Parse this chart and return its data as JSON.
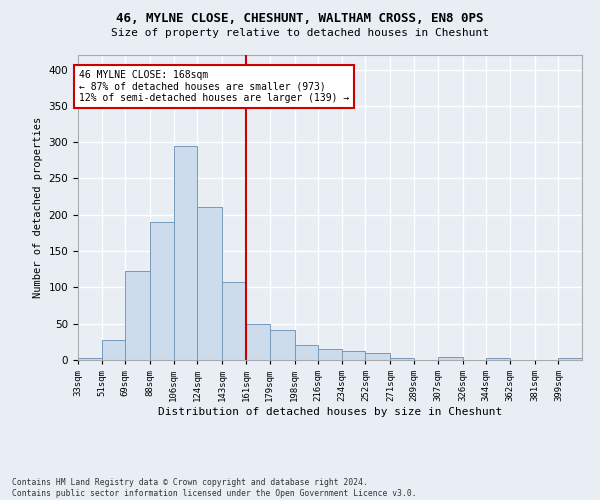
{
  "title1": "46, MYLNE CLOSE, CHESHUNT, WALTHAM CROSS, EN8 0PS",
  "title2": "Size of property relative to detached houses in Cheshunt",
  "xlabel": "Distribution of detached houses by size in Cheshunt",
  "ylabel": "Number of detached properties",
  "footnote": "Contains HM Land Registry data © Crown copyright and database right 2024.\nContains public sector information licensed under the Open Government Licence v3.0.",
  "bin_labels": [
    "33sqm",
    "51sqm",
    "69sqm",
    "88sqm",
    "106sqm",
    "124sqm",
    "143sqm",
    "161sqm",
    "179sqm",
    "198sqm",
    "216sqm",
    "234sqm",
    "252sqm",
    "271sqm",
    "289sqm",
    "307sqm",
    "326sqm",
    "344sqm",
    "362sqm",
    "381sqm",
    "399sqm"
  ],
  "heights": [
    3,
    28,
    122,
    190,
    295,
    210,
    108,
    50,
    42,
    20,
    15,
    12,
    10,
    3,
    0,
    4,
    0,
    3,
    0,
    0,
    3
  ],
  "property_size_bin": 7,
  "annotation_line1": "46 MYLNE CLOSE: 168sqm",
  "annotation_line2": "← 87% of detached houses are smaller (973)",
  "annotation_line3": "12% of semi-detached houses are larger (139) →",
  "bar_color": "#ccdcec",
  "bar_edge_color": "#7799bb",
  "vline_color": "#cc0000",
  "annotation_box_color": "#ffffff",
  "annotation_box_edge": "#cc0000",
  "bg_color": "#e8eef4",
  "grid_color": "#ffffff",
  "ylim": [
    0,
    420
  ],
  "yticks": [
    0,
    50,
    100,
    150,
    200,
    250,
    300,
    350,
    400
  ],
  "bin_edges": [
    33,
    51,
    69,
    88,
    106,
    124,
    143,
    161,
    179,
    198,
    216,
    234,
    252,
    271,
    289,
    307,
    326,
    344,
    362,
    381,
    399,
    417
  ]
}
